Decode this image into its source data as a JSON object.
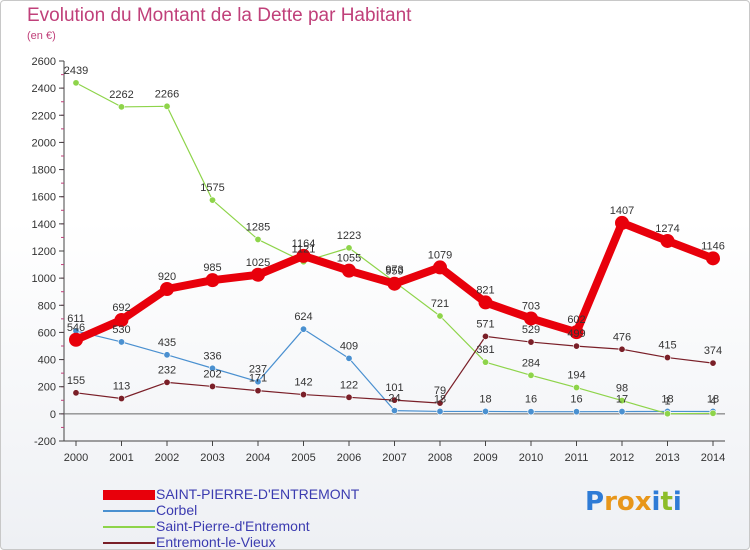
{
  "title": "Evolution du Montant de la Dette par Habitant",
  "unit": "(en €)",
  "logo": {
    "text": "Proxiti",
    "letters": [
      {
        "ch": "P",
        "color": "#2e7bd6"
      },
      {
        "ch": "r",
        "color": "#e8961a"
      },
      {
        "ch": "o",
        "color": "#e8961a"
      },
      {
        "ch": "x",
        "color": "#e8961a"
      },
      {
        "ch": "i",
        "color": "#2e7bd6"
      },
      {
        "ch": "t",
        "color": "#8dbd2a"
      },
      {
        "ch": "i",
        "color": "#2e7bd6"
      }
    ]
  },
  "chart_data": {
    "type": "line",
    "title": "Evolution du Montant de la Dette par Habitant",
    "xlabel": "",
    "ylabel": "(en €)",
    "categories": [
      "2000",
      "2001",
      "2002",
      "2003",
      "2004",
      "2005",
      "2006",
      "2007",
      "2008",
      "2009",
      "2010",
      "2011",
      "2012",
      "2013",
      "2014"
    ],
    "ylim": [
      -200,
      2600
    ],
    "yticks": [
      -200,
      0,
      200,
      400,
      600,
      800,
      1000,
      1200,
      1400,
      1600,
      1800,
      2000,
      2200,
      2400,
      2600
    ],
    "grid": false,
    "legend_position": "bottom-left",
    "series": [
      {
        "name": "SAINT-PIERRE-D'ENTREMONT",
        "color": "#e8000b",
        "width": 8,
        "values": [
          546,
          692,
          920,
          985,
          1025,
          1164,
          1055,
          959,
          1079,
          821,
          703,
          602,
          1407,
          1274,
          1146
        ]
      },
      {
        "name": "Corbel",
        "color": "#4a90d0",
        "width": 1.2,
        "values": [
          611,
          530,
          435,
          336,
          237,
          624,
          409,
          24,
          18,
          18,
          16,
          16,
          17,
          18,
          18
        ]
      },
      {
        "name": "Saint-Pierre-d'Entremont",
        "color": "#8ed44a",
        "width": 1.2,
        "values": [
          2439,
          2262,
          2266,
          1575,
          1285,
          1121,
          1223,
          973,
          721,
          381,
          284,
          194,
          98,
          1,
          4
        ]
      },
      {
        "name": "Entremont-le-Vieux",
        "color": "#7a1f28",
        "width": 1.2,
        "values": [
          155,
          113,
          232,
          202,
          171,
          142,
          122,
          101,
          79,
          571,
          529,
          499,
          476,
          415,
          374
        ]
      }
    ]
  }
}
